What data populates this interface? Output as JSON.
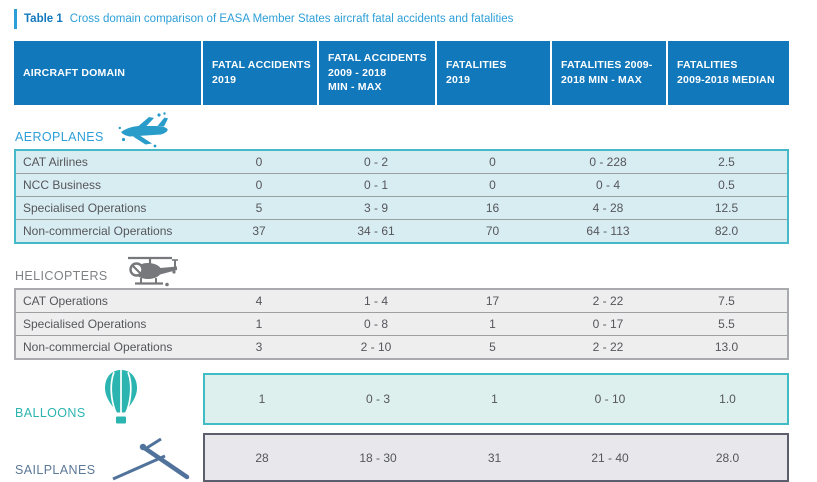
{
  "caption": {
    "label": "Table 1",
    "text": "Cross domain comparison of EASA Member States aircraft fatal accidents and fatalities"
  },
  "header": {
    "columns": [
      "AIRCRAFT DOMAIN",
      "FATAL ACCIDENTS\n2019",
      "FATAL ACCIDENTS\n2009 - 2018\nMIN - MAX",
      "FATALITIES\n2019",
      "FATALITIES 2009-\n2018 MIN - MAX",
      "FATALITIES\n2009-2018 MEDIAN"
    ]
  },
  "sections": [
    {
      "id": "aeroplanes",
      "label": "AEROPLANES",
      "icon": "airplane-icon",
      "theme": {
        "label_color": "#2d9fd8",
        "icon_color": "#2a9cc9",
        "border": "#45b9c7",
        "bg": "#d8edf2"
      },
      "rows": [
        {
          "name": "CAT Airlines",
          "values": [
            "0",
            "0 - 2",
            "0",
            "0 - 228",
            "2.5"
          ]
        },
        {
          "name": "NCC Business",
          "values": [
            "0",
            "0 - 1",
            "0",
            "0 - 4",
            "0.5"
          ]
        },
        {
          "name": "Specialised Operations",
          "values": [
            "5",
            "3 - 9",
            "16",
            "4 - 28",
            "12.5"
          ]
        },
        {
          "name": "Non-commercial Operations",
          "values": [
            "37",
            "34 - 61",
            "70",
            "64 - 113",
            "82.0"
          ]
        }
      ]
    },
    {
      "id": "helicopters",
      "label": "HELICOPTERS",
      "icon": "helicopter-icon",
      "theme": {
        "label_color": "#808285",
        "icon_color": "#77787b",
        "border": "#a8aaad",
        "bg": "#eeeeef"
      },
      "rows": [
        {
          "name": "CAT Operations",
          "values": [
            "4",
            "1 - 4",
            "17",
            "2 - 22",
            "7.5"
          ]
        },
        {
          "name": "Specialised Operations",
          "values": [
            "1",
            "0 - 8",
            "1",
            "0 - 17",
            "5.5"
          ]
        },
        {
          "name": "Non-commercial Operations",
          "values": [
            "3",
            "2 - 10",
            "5",
            "2 - 22",
            "13.0"
          ]
        }
      ]
    },
    {
      "id": "balloons",
      "label": "BALLOONS",
      "icon": "balloon-icon",
      "offset_row": true,
      "theme": {
        "label_color": "#2cb5b0",
        "icon_color": "#2cb5b0",
        "border": "#3fbcc4",
        "bg": "#ddf0ee"
      },
      "rows": [
        {
          "name": "",
          "values": [
            "1",
            "0 - 3",
            "1",
            "0 - 10",
            "1.0"
          ]
        }
      ]
    },
    {
      "id": "sailplanes",
      "label": "SAILPLANES",
      "icon": "glider-icon",
      "offset_row": true,
      "theme": {
        "label_color": "#5b7897",
        "icon_color": "#51739b",
        "border": "#5c5e6e",
        "bg": "#e8e8ec"
      },
      "rows": [
        {
          "name": "",
          "values": [
            "28",
            "18 - 30",
            "31",
            "21 - 40",
            "28.0"
          ]
        }
      ]
    }
  ],
  "colors": {
    "header_bg": "#1278bc",
    "caption_accent": "#2d9fd8",
    "caption_label": "#1178bd",
    "row_text": "#55565a",
    "row_separator": "#9da0a3"
  }
}
